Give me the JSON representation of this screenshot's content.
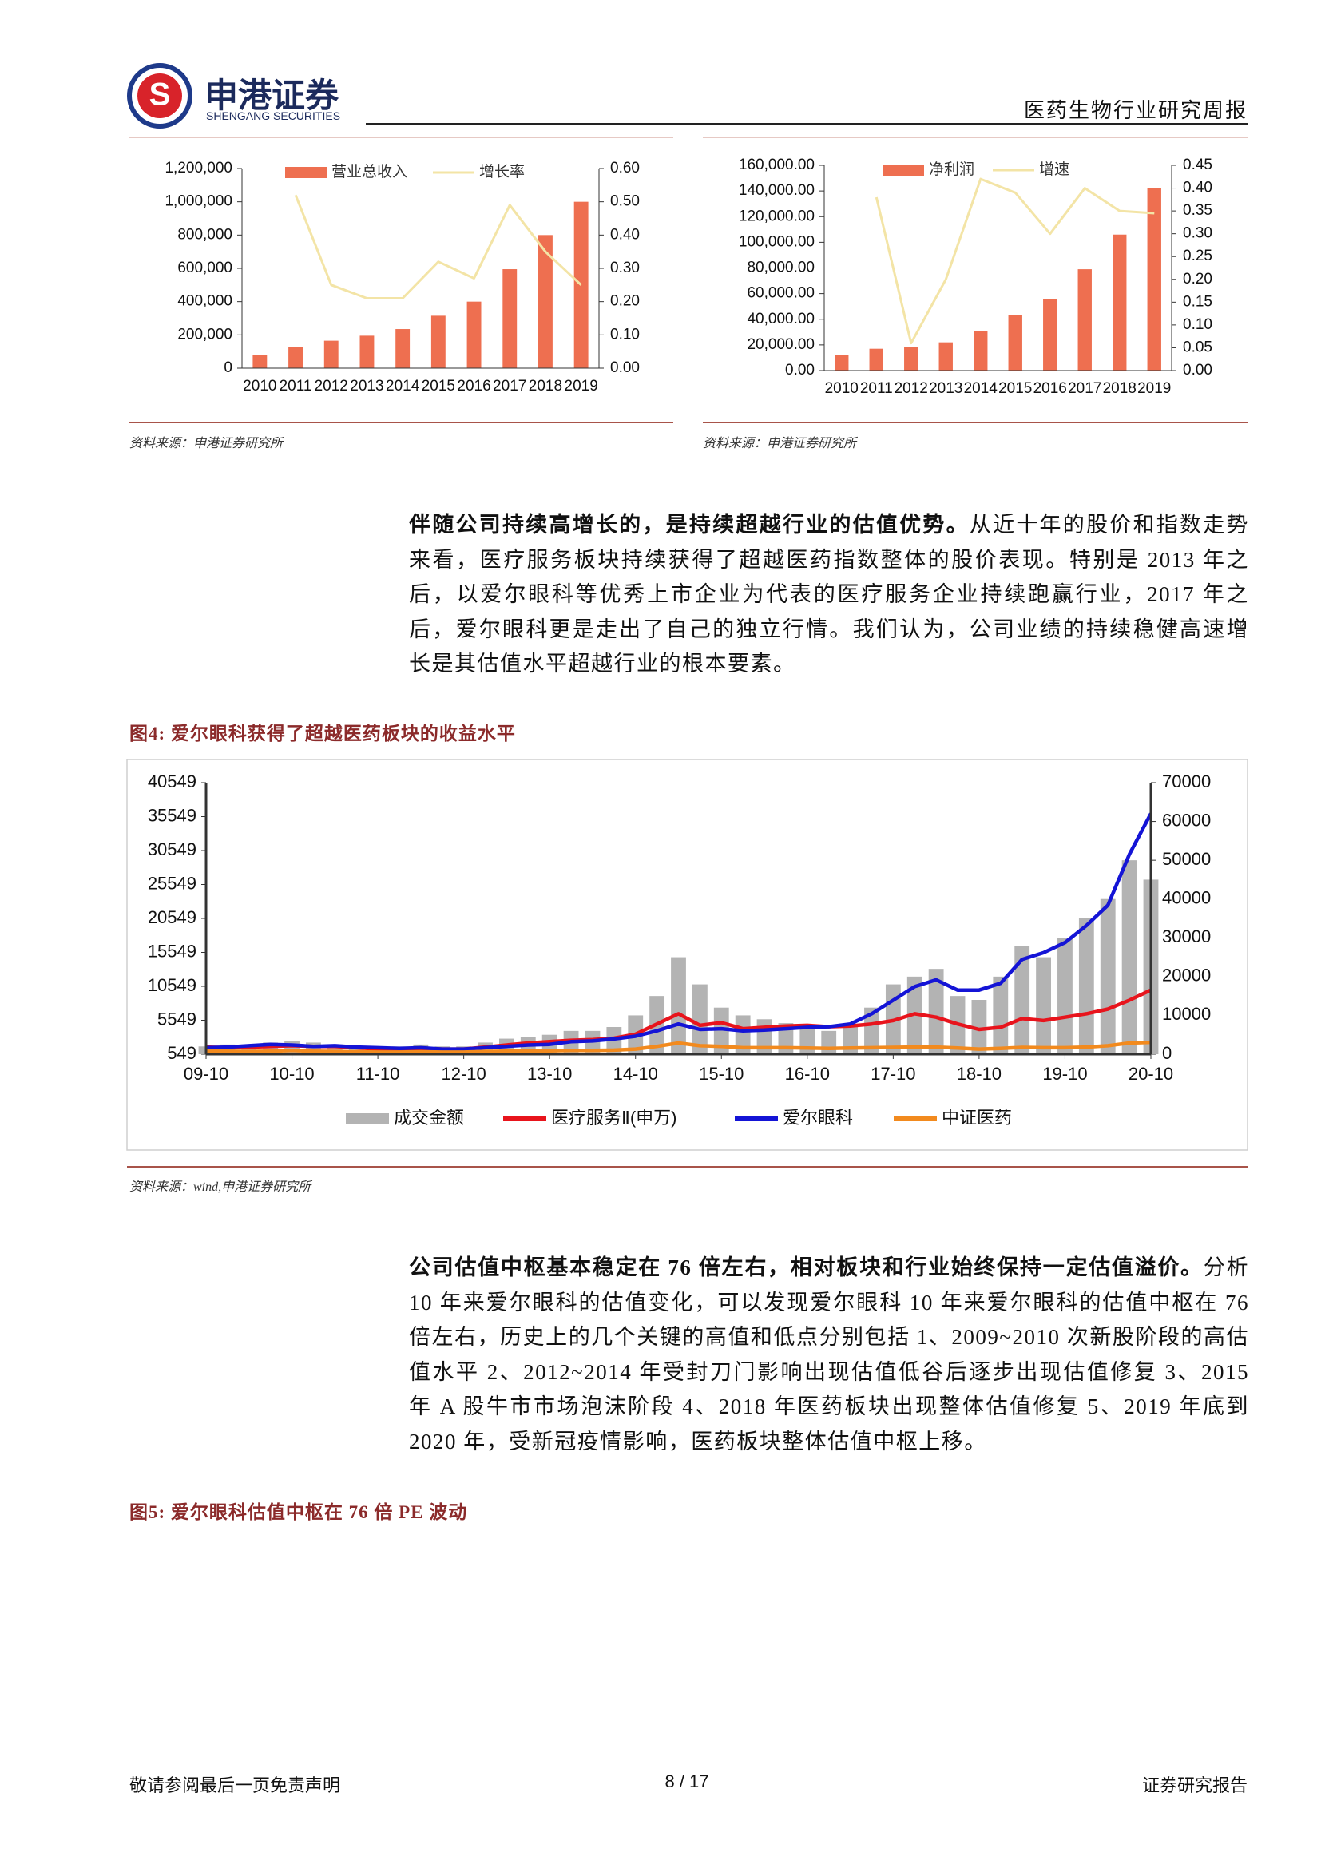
{
  "header": {
    "logo_cn": "申港证券",
    "logo_en": "SHENGANG SECURITIES",
    "report_type": "医药生物行业研究周报"
  },
  "chart_data": [
    {
      "type": "bar",
      "categories": [
        "2010",
        "2011",
        "2012",
        "2013",
        "2014",
        "2015",
        "2016",
        "2017",
        "2018",
        "2019"
      ],
      "series": [
        {
          "name": "营业总收入",
          "type": "bar",
          "color": "#ee6f50",
          "values": [
            80000,
            125000,
            165000,
            195000,
            235000,
            315000,
            400000,
            595000,
            800000,
            1000000
          ]
        },
        {
          "name": "增长率",
          "type": "line",
          "axis": "y2",
          "color": "#f3e4a6",
          "values": [
            null,
            0.52,
            0.25,
            0.21,
            0.21,
            0.32,
            0.27,
            0.49,
            0.35,
            0.25
          ]
        }
      ],
      "ylim": [
        0,
        1200000
      ],
      "yticks": [
        0,
        {
          "value": 200000,
          "label": "200,000"
        },
        {
          "value": 400000,
          "label": "400,000"
        },
        {
          "value": 600000,
          "label": "600,000"
        },
        {
          "value": 800000,
          "label": "800,000"
        },
        {
          "value": 1000000,
          "label": "1,000,000"
        },
        {
          "value": 1200000,
          "label": "1,200,000"
        }
      ],
      "y2lim": [
        0,
        0.6
      ],
      "y2ticks": [
        {
          "value": 0,
          "label": "0.00"
        },
        {
          "value": 0.1,
          "label": "0.10"
        },
        {
          "value": 0.2,
          "label": "0.20"
        },
        {
          "value": 0.3,
          "label": "0.30"
        },
        {
          "value": 0.4,
          "label": "0.40"
        },
        {
          "value": 0.5,
          "label": "0.50"
        },
        {
          "value": 0.6,
          "label": "0.60"
        }
      ]
    },
    {
      "type": "bar",
      "categories": [
        "2010",
        "2011",
        "2012",
        "2013",
        "2014",
        "2015",
        "2016",
        "2017",
        "2018",
        "2019"
      ],
      "series": [
        {
          "name": "净利润",
          "type": "bar",
          "color": "#ee6f50",
          "values": [
            12000,
            17000,
            18500,
            22000,
            31000,
            43000,
            56000,
            79000,
            106000,
            142000
          ]
        },
        {
          "name": "增速",
          "type": "line",
          "axis": "y2",
          "color": "#f3e4a6",
          "values": [
            null,
            0.38,
            0.06,
            0.2,
            0.42,
            0.39,
            0.3,
            0.4,
            0.35,
            0.345
          ]
        }
      ],
      "ylim": [
        0,
        160000
      ],
      "yticks": [
        {
          "value": 0,
          "label": "0.00"
        },
        {
          "value": 20000,
          "label": "20,000.00"
        },
        {
          "value": 40000,
          "label": "40,000.00"
        },
        {
          "value": 60000,
          "label": "60,000.00"
        },
        {
          "value": 80000,
          "label": "80,000.00"
        },
        {
          "value": 100000,
          "label": "100,000.00"
        },
        {
          "value": 120000,
          "label": "120,000.00"
        },
        {
          "value": 140000,
          "label": "140,000.00"
        },
        {
          "value": 160000,
          "label": "160,000.00"
        }
      ],
      "y2lim": [
        0,
        0.45
      ],
      "y2ticks": [
        {
          "value": 0,
          "label": "0.00"
        },
        {
          "value": 0.05,
          "label": "0.05"
        },
        {
          "value": 0.1,
          "label": "0.10"
        },
        {
          "value": 0.15,
          "label": "0.15"
        },
        {
          "value": 0.2,
          "label": "0.20"
        },
        {
          "value": 0.25,
          "label": "0.25"
        },
        {
          "value": 0.3,
          "label": "0.30"
        },
        {
          "value": 0.35,
          "label": "0.35"
        },
        {
          "value": 0.4,
          "label": "0.40"
        },
        {
          "value": 0.45,
          "label": "0.45"
        }
      ]
    },
    {
      "type": "line",
      "categories": [
        "09-10",
        null,
        null,
        null,
        "10-10",
        null,
        null,
        null,
        "11-10",
        null,
        null,
        null,
        "12-10",
        null,
        null,
        null,
        "13-10",
        null,
        null,
        null,
        "14-10",
        null,
        null,
        null,
        "15-10",
        null,
        null,
        null,
        "16-10",
        null,
        null,
        null,
        "17-10",
        null,
        null,
        null,
        "18-10",
        null,
        null,
        null,
        "19-10",
        null,
        null,
        null,
        "20-10"
      ],
      "series": [
        {
          "name": "成交金额",
          "type": "bar",
          "axis": "y2",
          "color": "#b3b3b3",
          "values": [
            2000,
            2500,
            2500,
            3000,
            3500,
            3000,
            2500,
            2000,
            2000,
            2000,
            2500,
            2000,
            2000,
            3000,
            4000,
            4500,
            5000,
            6000,
            6000,
            7000,
            10000,
            15000,
            25000,
            18000,
            12000,
            10000,
            9000,
            8000,
            7000,
            6000,
            7000,
            12000,
            18000,
            20000,
            22000,
            15000,
            14000,
            20000,
            28000,
            25000,
            30000,
            35000,
            40000,
            50000,
            45000
          ]
        },
        {
          "name": "医疗服务Ⅱ(申万)",
          "type": "line",
          "color": "#e8141c",
          "values": [
            1600,
            1500,
            1600,
            1700,
            1800,
            1700,
            1700,
            1500,
            1300,
            1300,
            1400,
            1300,
            1300,
            1600,
            1900,
            2200,
            2400,
            2600,
            2700,
            2900,
            3500,
            5000,
            6500,
            4800,
            5200,
            4300,
            4500,
            4700,
            4800,
            4600,
            4700,
            5000,
            5500,
            6500,
            6000,
            5000,
            4200,
            4500,
            5800,
            5500,
            6000,
            6500,
            7200,
            8500,
            10000
          ]
        },
        {
          "name": "爱尔眼科",
          "type": "line",
          "color": "#1414d6",
          "values": [
            1500,
            1600,
            1800,
            2000,
            1900,
            1700,
            1800,
            1600,
            1500,
            1400,
            1500,
            1300,
            1300,
            1500,
            1700,
            1900,
            2000,
            2400,
            2500,
            2800,
            3200,
            4000,
            5000,
            4200,
            4300,
            4000,
            4100,
            4300,
            4500,
            4600,
            5000,
            6500,
            8500,
            10500,
            11500,
            10000,
            10000,
            11000,
            14500,
            15500,
            17000,
            19500,
            22500,
            30000,
            36000
          ]
        },
        {
          "name": "中证医药",
          "type": "line",
          "color": "#f28a1e",
          "values": [
            1000,
            1000,
            950,
            1000,
            1100,
            1000,
            950,
            900,
            850,
            850,
            900,
            850,
            850,
            950,
            1000,
            1050,
            1050,
            1100,
            1100,
            1150,
            1300,
            1700,
            2200,
            1800,
            1700,
            1500,
            1500,
            1500,
            1450,
            1400,
            1450,
            1500,
            1550,
            1600,
            1600,
            1450,
            1300,
            1400,
            1550,
            1500,
            1500,
            1600,
            1800,
            2200,
            2300
          ]
        }
      ],
      "ylim": [
        549,
        40549
      ],
      "yticks": [
        549,
        5549,
        10549,
        15549,
        20549,
        25549,
        30549,
        35549,
        40549
      ],
      "y2lim": [
        0,
        70000
      ],
      "y2ticks": [
        0,
        10000,
        20000,
        30000,
        40000,
        50000,
        60000,
        70000
      ]
    }
  ],
  "sources": [
    "资料来源：申港证券研究所",
    "资料来源：申港证券研究所",
    "资料来源：wind,申港证券研究所"
  ],
  "paragraphs": [
    {
      "bold": "伴随公司持续高增长的，是持续超越行业的估值优势。",
      "text": "从近十年的股价和指数走势来看，医疗服务板块持续获得了超越医药指数整体的股价表现。特别是 2013 年之后，以爱尔眼科等优秀上市企业为代表的医疗服务企业持续跑赢行业，2017 年之后，爱尔眼科更是走出了自己的独立行情。我们认为，公司业绩的持续稳健高速增长是其估值水平超越行业的根本要素。"
    },
    {
      "bold": "公司估值中枢基本稳定在 76 倍左右，相对板块和行业始终保持一定估值溢价。",
      "text": "分析 10 年来爱尔眼科的估值变化，可以发现爱尔眼科 10 年来爱尔眼科的估值中枢在 76 倍左右，历史上的几个关键的高值和低点分别包括 1、2009~2010 次新股阶段的高估值水平 2、2012~2014 年受封刀门影响出现估值低谷后逐步出现估值修复 3、2015 年 A 股牛市市场泡沫阶段 4、2018 年医药板块出现整体估值修复 5、2019 年底到 2020 年，受新冠疫情影响，医药板块整体估值中枢上移。"
    }
  ],
  "figure_titles": [
    "图4: 爱尔眼科获得了超越医药板块的收益水平",
    "图5: 爱尔眼科估值中枢在 76 倍 PE 波动"
  ],
  "footer": {
    "left": "敬请参阅最后一页免责声明",
    "page": "8 / 17",
    "right": "证券研究报告"
  }
}
